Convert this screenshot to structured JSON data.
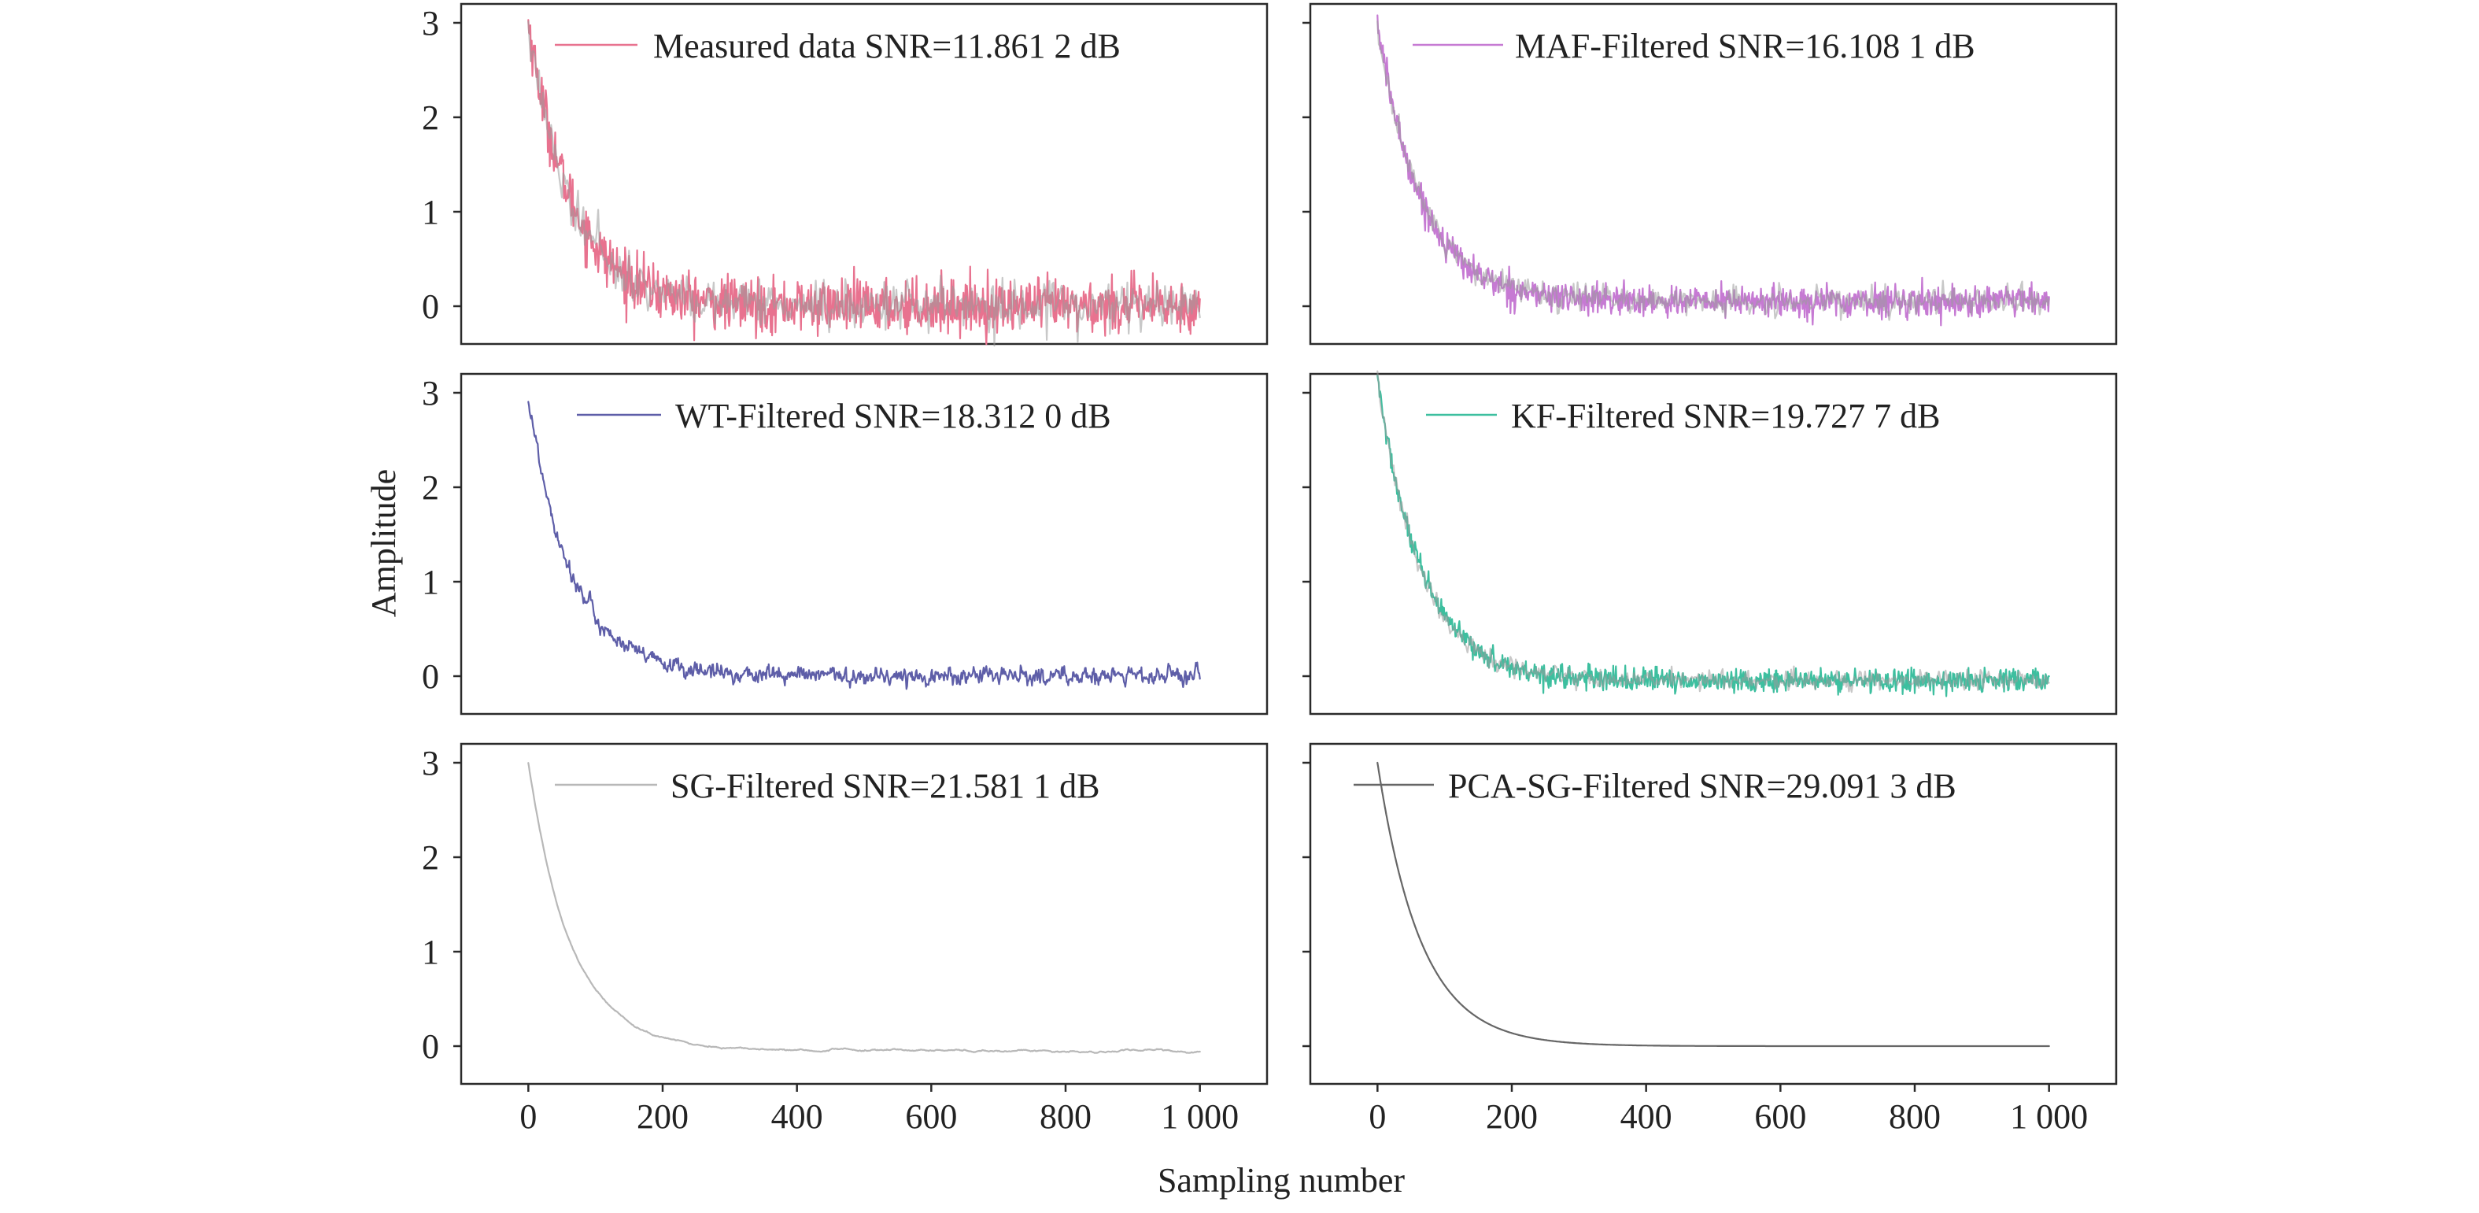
{
  "colors": {
    "measured": "#e8728f",
    "maf": "#c67ad3",
    "wt": "#5e5ea8",
    "kf": "#3dbf9f",
    "sg": "#b8b8b8",
    "pca_sg": "#666666",
    "legend_noise_gray": "#9a9a9a"
  },
  "chart_data": {
    "type": "line",
    "layout": "3 rows x 2 columns, shared axes",
    "ylabel": "Amplitude",
    "xlabel": "Sampling number",
    "x_ticks": [
      "0",
      "200",
      "400",
      "600",
      "800",
      "1 000"
    ],
    "y_ticks": [
      "0",
      "1",
      "2",
      "3"
    ],
    "xlim": [
      -100,
      1100
    ],
    "ylim": [
      -0.4,
      3.2
    ],
    "grid": false,
    "legend_placement": "top, inside each panel",
    "signal_model": "amplitude ≈ 3·exp(−n/65) with residual noise",
    "panels": [
      {
        "id": "measured",
        "legend": "Measured data SNR=11.861 2 dB",
        "snr_db": 11.8612,
        "noise_std": 0.14,
        "x_range": [
          0,
          1000
        ],
        "y_start": 3.0,
        "y_end": 0.0
      },
      {
        "id": "maf",
        "legend": "MAF-Filtered SNR=16.108 1 dB",
        "snr_db": 16.1081,
        "noise_std": 0.08,
        "x_range": [
          0,
          1000
        ],
        "y_start": 3.0,
        "y_end": 0.05
      },
      {
        "id": "wt",
        "legend": "WT-Filtered SNR=18.312 0 dB",
        "snr_db": 18.312,
        "noise_std": 0.07,
        "x_range": [
          0,
          1000
        ],
        "y_start": 2.95,
        "y_end": 0.0
      },
      {
        "id": "kf",
        "legend": "KF-Filtered SNR=19.727 7 dB",
        "snr_db": 19.7277,
        "noise_std": 0.06,
        "x_range": [
          0,
          1000
        ],
        "y_start": 3.15,
        "y_end": -0.05
      },
      {
        "id": "sg",
        "legend": "SG-Filtered SNR=21.581 1 dB",
        "snr_db": 21.5811,
        "noise_std": 0.03,
        "x_range": [
          0,
          1000
        ],
        "y_start": 3.0,
        "y_end": -0.05
      },
      {
        "id": "pca_sg",
        "legend": "PCA-SG-Filtered SNR=29.091 3 dB",
        "snr_db": 29.0913,
        "noise_std": 0.0,
        "x_range": [
          0,
          1000
        ],
        "y_start": 3.0,
        "y_end": 0.0
      }
    ]
  }
}
